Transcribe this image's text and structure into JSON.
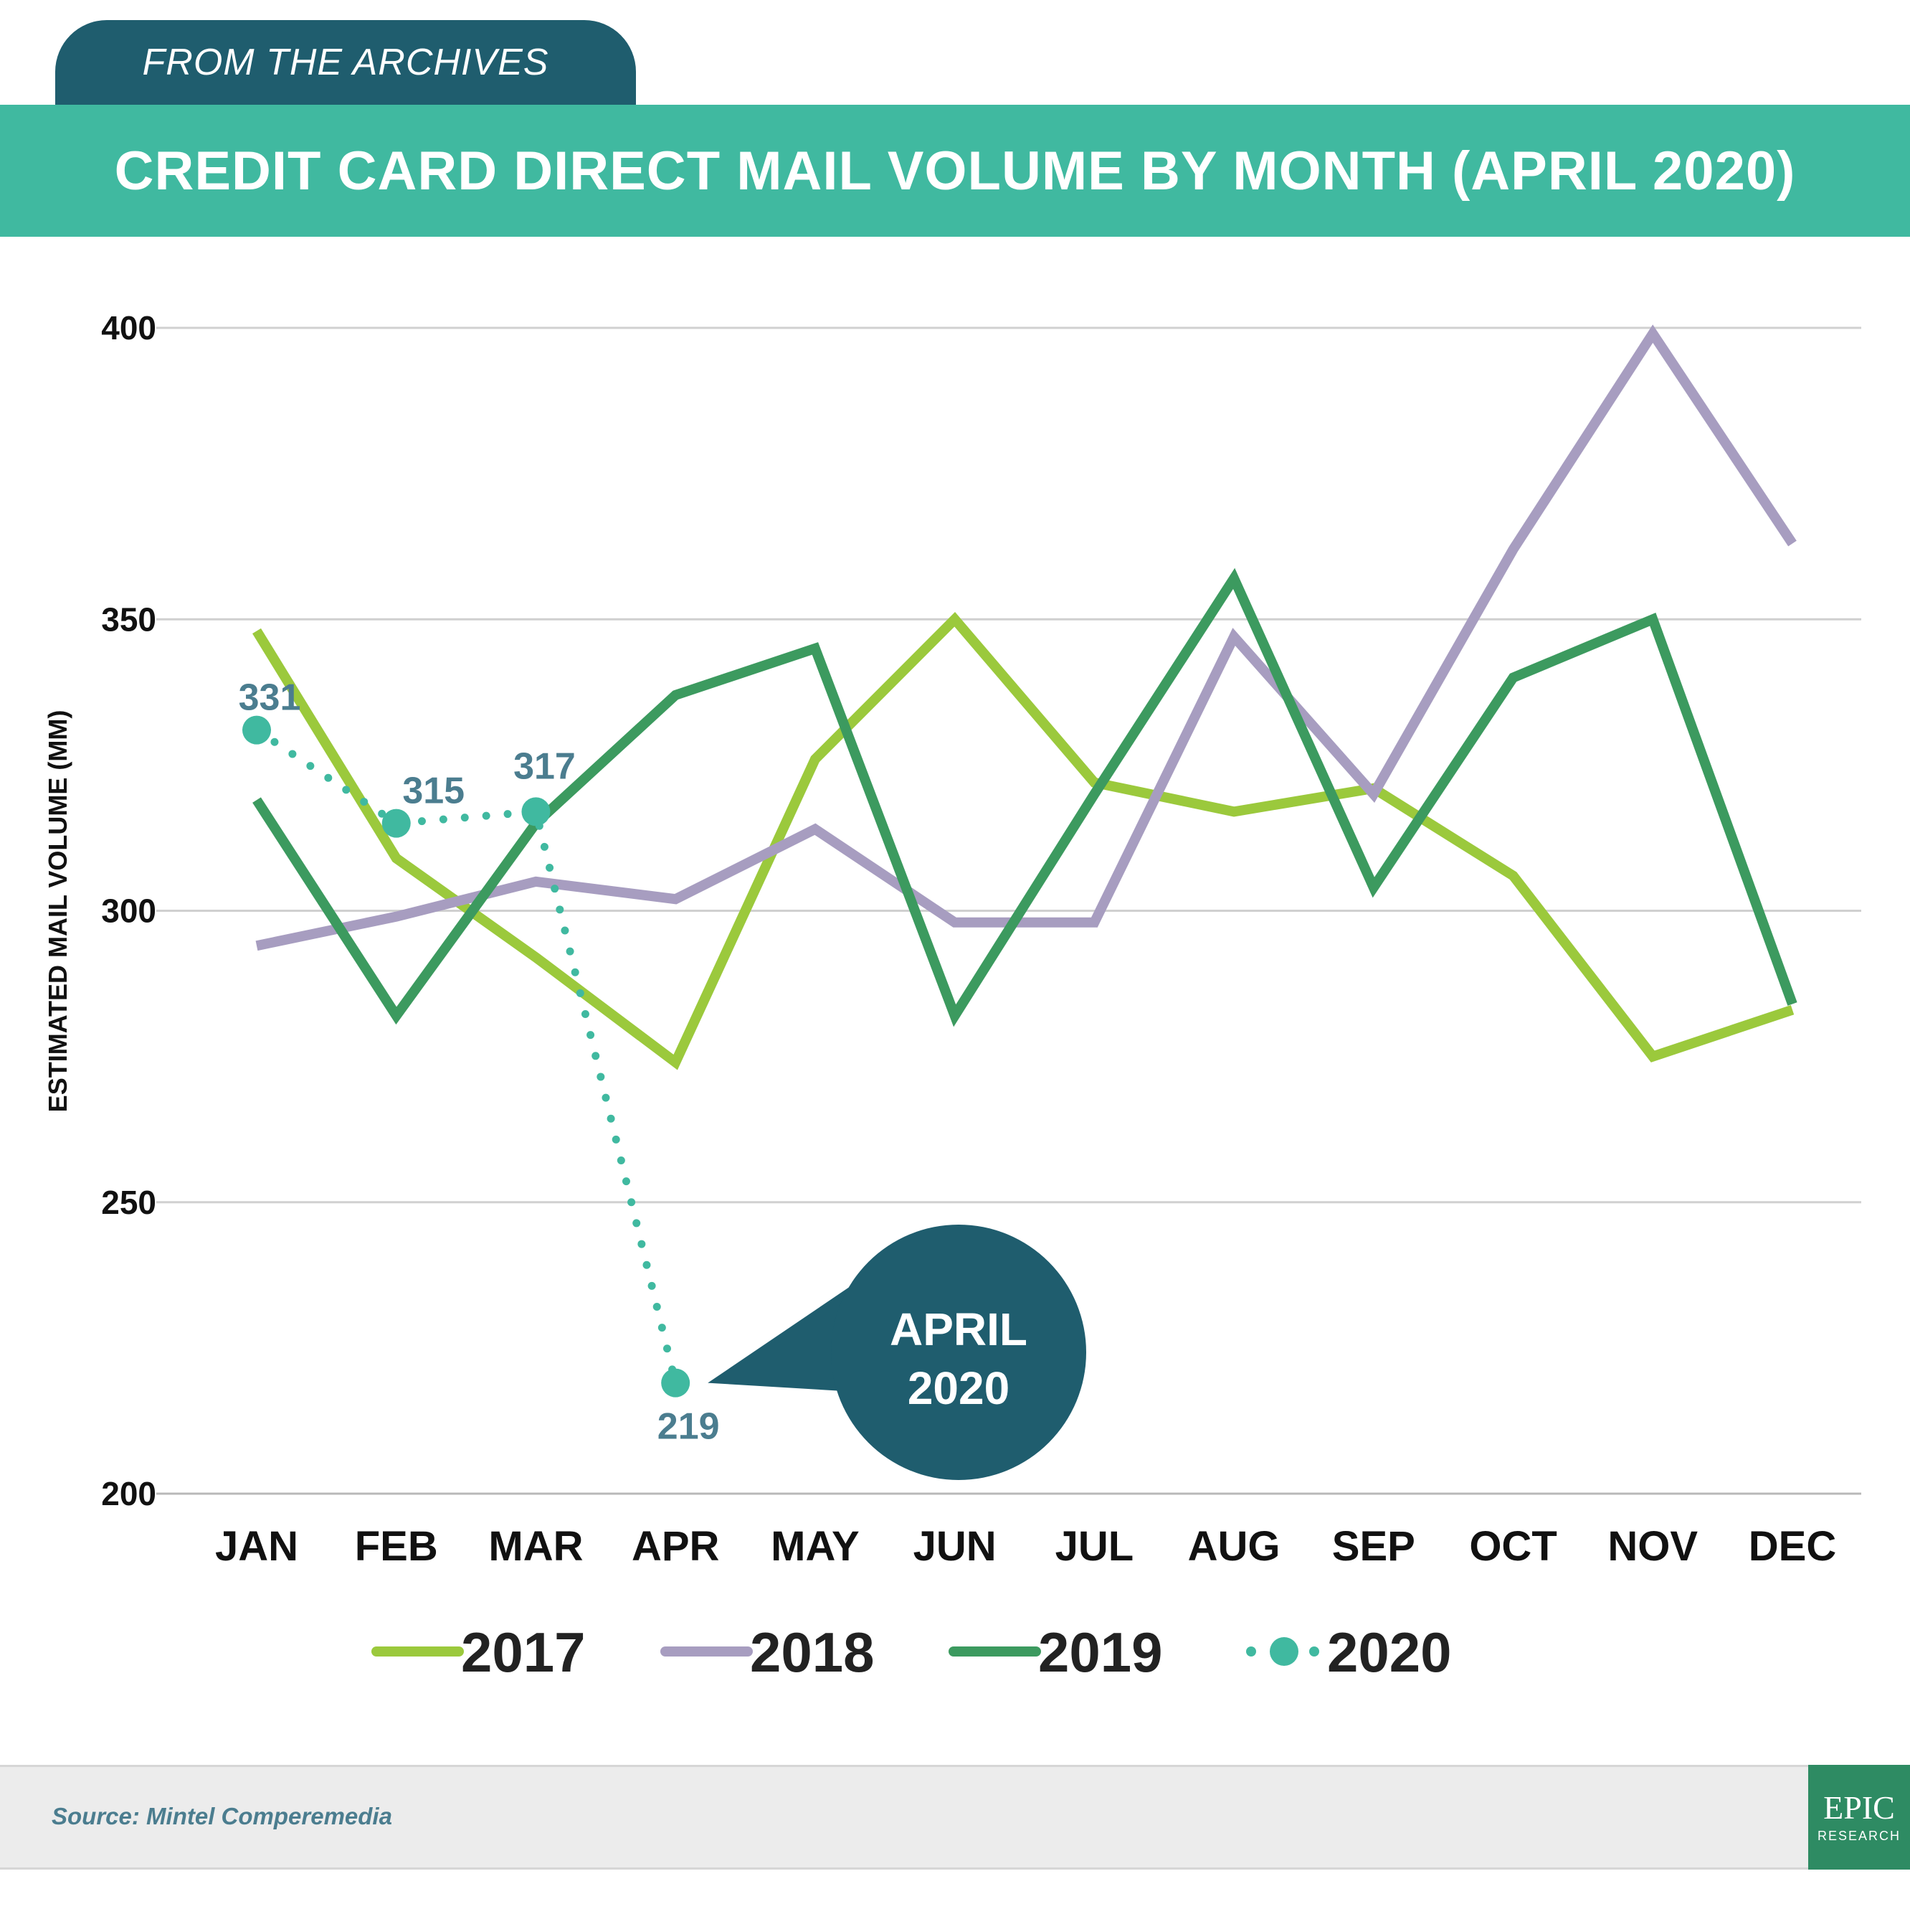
{
  "header": {
    "tab_label": "FROM THE ARCHIVES",
    "title": "CREDIT CARD DIRECT MAIL VOLUME BY MONTH (APRIL 2020)"
  },
  "colors": {
    "tab": "#1f5d6e",
    "title_bar": "#40b9a0",
    "grid": "#d0d0d0",
    "label_text": "#4b7d8f",
    "callout": "#1f5d6e"
  },
  "chart_data": {
    "type": "line",
    "title": "CREDIT CARD DIRECT MAIL VOLUME BY MONTH (APRIL 2020)",
    "xlabel": "",
    "ylabel": "ESTIMATED MAIL VOLUME (MM)",
    "ylim": [
      200,
      400
    ],
    "yticks": [
      400,
      350,
      300,
      250,
      200
    ],
    "grid": true,
    "legend_position": "bottom",
    "categories": [
      "JAN",
      "FEB",
      "MAR",
      "APR",
      "MAY",
      "JUN",
      "JUL",
      "AUG",
      "SEP",
      "OCT",
      "NOV",
      "DEC"
    ],
    "series": [
      {
        "name": "2017",
        "color": "#9bc93c",
        "style": "solid",
        "values": [
          348,
          309,
          292,
          274,
          326,
          350,
          322,
          317,
          321,
          306,
          275,
          283
        ]
      },
      {
        "name": "2018",
        "color": "#a79dc0",
        "style": "solid",
        "values": [
          294,
          299,
          305,
          302,
          314,
          298,
          298,
          347,
          320,
          362,
          399,
          363
        ]
      },
      {
        "name": "2019",
        "color": "#3c9a5f",
        "style": "solid",
        "values": [
          319,
          282,
          315,
          337,
          345,
          282,
          320,
          357,
          304,
          340,
          350,
          284
        ]
      },
      {
        "name": "2020",
        "color": "#40b9a0",
        "style": "dotted",
        "values": [
          331,
          315,
          317,
          219,
          null,
          null,
          null,
          null,
          null,
          null,
          null,
          null
        ],
        "labels": [
          "331",
          "315",
          "317",
          "219"
        ]
      }
    ],
    "annotations": [
      {
        "text_line1": "APRIL",
        "text_line2": "2020",
        "target": "APR"
      }
    ]
  },
  "footer": {
    "source": "Source: Mintel Comperemedia",
    "logo_main": "EPIC",
    "logo_sub": "RESEARCH"
  }
}
